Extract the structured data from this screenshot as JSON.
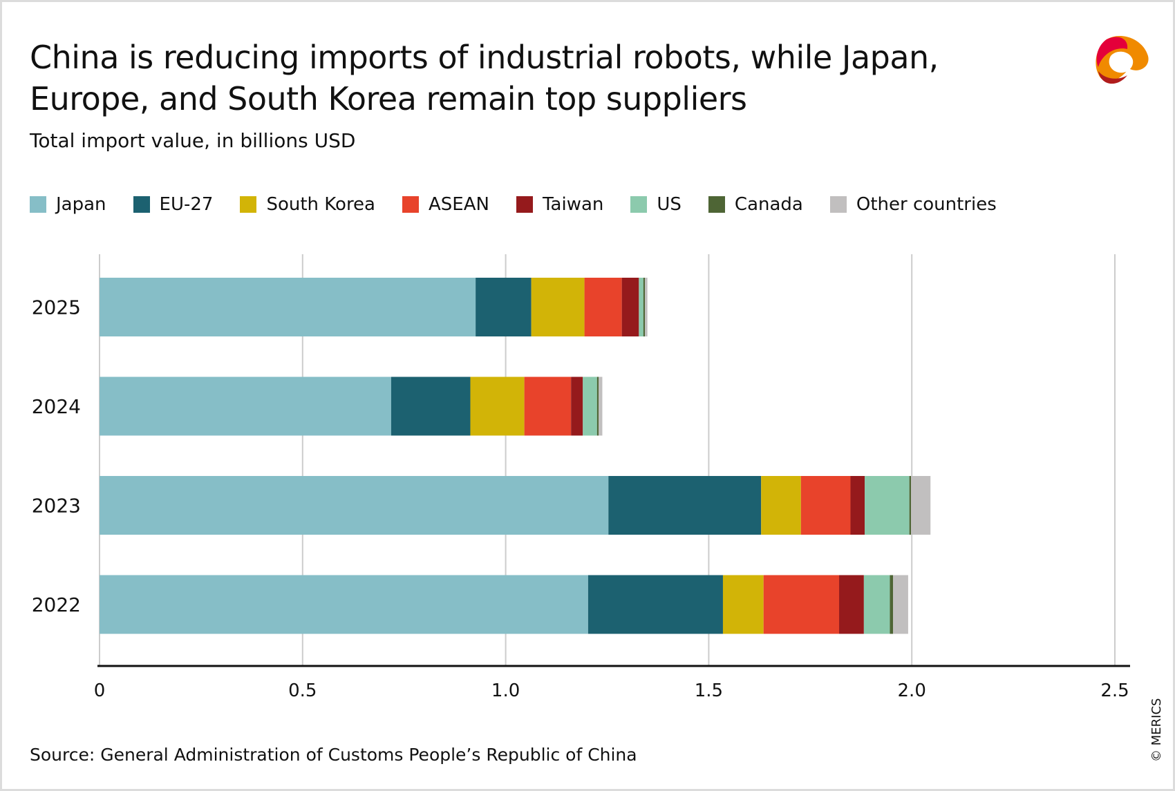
{
  "title": "China is reducing imports of industrial robots, while Japan, Europe, and South Korea remain top suppliers",
  "subtitle": "Total import value, in billions USD",
  "source": "Source: General Administration of Customs People’s Republic of China",
  "copyright": "© MERICS",
  "logo": "MERICS",
  "chart_data": {
    "type": "bar",
    "orientation": "horizontal",
    "stacked": true,
    "categories": [
      "2025",
      "2024",
      "2023",
      "2022"
    ],
    "xlim": [
      0,
      2.5
    ],
    "xticks": [
      0,
      0.5,
      1.0,
      1.5,
      2.0,
      2.5
    ],
    "xtick_labels": [
      "0",
      "0.5",
      "1.0",
      "1.5",
      "2.0",
      "2.5"
    ],
    "grid": "vertical",
    "legend_position": "top",
    "series": [
      {
        "name": "Japan",
        "color": "#86bec7",
        "values": [
          0.926,
          0.718,
          1.253,
          1.203
        ]
      },
      {
        "name": "EU-27",
        "color": "#1c6170",
        "values": [
          0.137,
          0.195,
          0.376,
          0.332
        ]
      },
      {
        "name": "South Korea",
        "color": "#d2b407",
        "values": [
          0.131,
          0.133,
          0.098,
          0.1
        ]
      },
      {
        "name": "ASEAN",
        "color": "#e8432b",
        "values": [
          0.092,
          0.115,
          0.122,
          0.186
        ]
      },
      {
        "name": "Taiwan",
        "color": "#951a1c",
        "values": [
          0.042,
          0.029,
          0.035,
          0.061
        ]
      },
      {
        "name": "US",
        "color": "#8ccaad",
        "values": [
          0.011,
          0.035,
          0.11,
          0.064
        ]
      },
      {
        "name": "Canada",
        "color": "#4e6535",
        "values": [
          0.004,
          0.004,
          0.004,
          0.008
        ]
      },
      {
        "name": "Other countries",
        "color": "#c1bfbf",
        "values": [
          0.006,
          0.009,
          0.048,
          0.037
        ]
      }
    ]
  }
}
